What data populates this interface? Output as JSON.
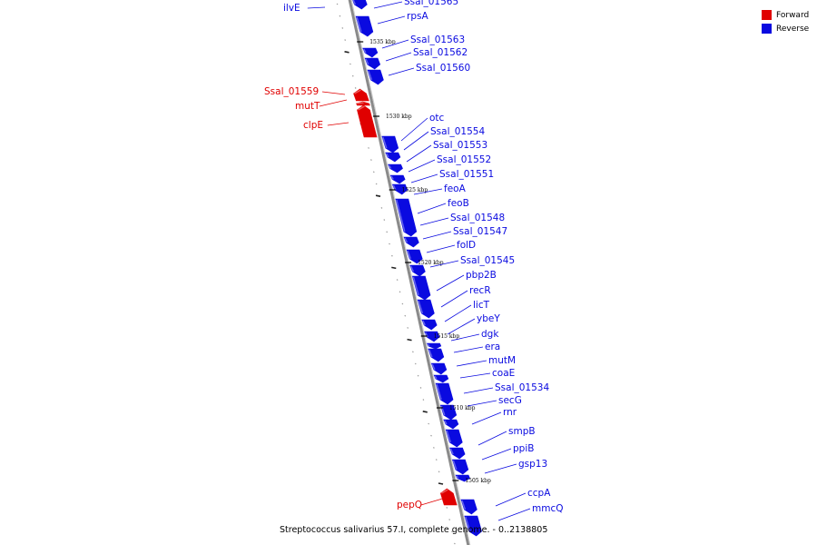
{
  "legend": {
    "forward_label": "Forward",
    "reverse_label": "Reverse",
    "forward_color": "#e00000",
    "reverse_color": "#0a0ae0"
  },
  "caption": "Streptococcus salivarius 57.I, complete genome. - 0..2138805",
  "scale_labels": [
    "1535 kbp",
    "1530 kbp",
    "1525 kbp",
    "1520 kbp",
    "1515 kbp",
    "1510 kbp",
    "1505 kbp"
  ],
  "genes": [
    {
      "name": "ilvE",
      "strand": "forward_label_only"
    },
    {
      "name": "Ssal_01565",
      "strand": "reverse"
    },
    {
      "name": "rpsA",
      "strand": "reverse"
    },
    {
      "name": "Ssal_01563",
      "strand": "reverse"
    },
    {
      "name": "Ssal_01562",
      "strand": "reverse"
    },
    {
      "name": "Ssal_01560",
      "strand": "reverse"
    },
    {
      "name": "Ssal_01559",
      "strand": "forward"
    },
    {
      "name": "mutT",
      "strand": "forward"
    },
    {
      "name": "clpE",
      "strand": "forward"
    },
    {
      "name": "otc",
      "strand": "reverse"
    },
    {
      "name": "Ssal_01554",
      "strand": "reverse"
    },
    {
      "name": "Ssal_01553",
      "strand": "reverse"
    },
    {
      "name": "Ssal_01552",
      "strand": "reverse"
    },
    {
      "name": "Ssal_01551",
      "strand": "reverse"
    },
    {
      "name": "feoA",
      "strand": "reverse"
    },
    {
      "name": "feoB",
      "strand": "reverse"
    },
    {
      "name": "Ssal_01548",
      "strand": "reverse"
    },
    {
      "name": "Ssal_01547",
      "strand": "reverse"
    },
    {
      "name": "folD",
      "strand": "reverse"
    },
    {
      "name": "Ssal_01545",
      "strand": "reverse"
    },
    {
      "name": "pbp2B",
      "strand": "reverse"
    },
    {
      "name": "recR",
      "strand": "reverse"
    },
    {
      "name": "licT",
      "strand": "reverse"
    },
    {
      "name": "ybeY",
      "strand": "reverse"
    },
    {
      "name": "dgk",
      "strand": "reverse"
    },
    {
      "name": "era",
      "strand": "reverse"
    },
    {
      "name": "mutM",
      "strand": "reverse"
    },
    {
      "name": "coaE",
      "strand": "reverse"
    },
    {
      "name": "Ssal_01534",
      "strand": "reverse"
    },
    {
      "name": "secG",
      "strand": "reverse"
    },
    {
      "name": "rnr",
      "strand": "reverse"
    },
    {
      "name": "smpB",
      "strand": "reverse"
    },
    {
      "name": "ppiB",
      "strand": "reverse"
    },
    {
      "name": "gsp13",
      "strand": "reverse"
    },
    {
      "name": "pepQ",
      "strand": "forward"
    },
    {
      "name": "ccpA",
      "strand": "reverse"
    },
    {
      "name": "mmcQ",
      "strand": "reverse"
    }
  ]
}
